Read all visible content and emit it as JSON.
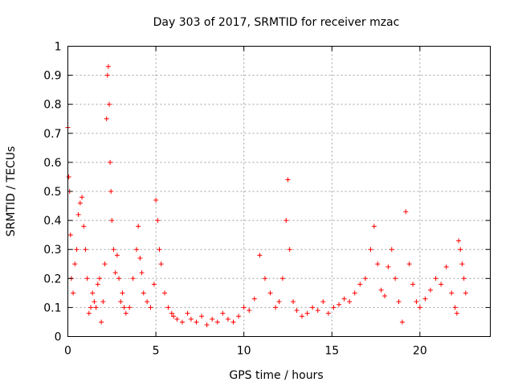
{
  "chart_data": {
    "type": "scatter",
    "title": "Day 303 of 2017, SRMTID for receiver mzac",
    "xlabel": "GPS time / hours",
    "ylabel": "SRMTID / TECUs",
    "xlim": [
      0,
      24
    ],
    "ylim": [
      0,
      1
    ],
    "x_ticks": [
      0,
      5,
      10,
      15,
      20
    ],
    "x_tick_labels": [
      "0",
      "5",
      "10",
      "15",
      "20"
    ],
    "y_ticks": [
      0,
      0.1,
      0.2,
      0.3,
      0.4,
      0.5,
      0.6,
      0.7,
      0.8,
      0.9,
      1
    ],
    "y_tick_labels": [
      "0",
      "0.1",
      "0.2",
      "0.3",
      "0.4",
      "0.5",
      "0.6",
      "0.7",
      "0.8",
      "0.9",
      "1"
    ],
    "grid": true,
    "marker": "+",
    "marker_color": "#ff0000",
    "series": [
      {
        "name": "SRMTID",
        "x": [
          0.0,
          0.05,
          0.1,
          0.15,
          0.2,
          0.3,
          0.4,
          0.5,
          0.6,
          0.7,
          0.8,
          0.9,
          1.0,
          1.1,
          1.2,
          1.3,
          1.4,
          1.5,
          1.6,
          1.7,
          1.8,
          1.9,
          2.0,
          2.1,
          2.2,
          2.25,
          2.3,
          2.35,
          2.4,
          2.45,
          2.5,
          2.6,
          2.7,
          2.8,
          2.9,
          3.0,
          3.1,
          3.2,
          3.3,
          3.5,
          3.7,
          3.9,
          4.0,
          4.1,
          4.2,
          4.3,
          4.5,
          4.7,
          4.9,
          5.0,
          5.1,
          5.2,
          5.3,
          5.5,
          5.7,
          5.9,
          6.0,
          6.2,
          6.5,
          6.8,
          7.0,
          7.3,
          7.6,
          7.9,
          8.2,
          8.5,
          8.8,
          9.1,
          9.4,
          9.7,
          10.0,
          10.3,
          10.6,
          10.9,
          11.2,
          11.5,
          11.8,
          12.0,
          12.2,
          12.4,
          12.5,
          12.6,
          12.8,
          13.0,
          13.3,
          13.6,
          13.9,
          14.2,
          14.5,
          14.8,
          15.1,
          15.4,
          15.7,
          16.0,
          16.3,
          16.6,
          16.9,
          17.2,
          17.4,
          17.6,
          17.8,
          18.0,
          18.2,
          18.4,
          18.6,
          18.8,
          19.0,
          19.2,
          19.4,
          19.6,
          19.8,
          20.0,
          20.3,
          20.6,
          20.9,
          21.2,
          21.5,
          21.8,
          22.0,
          22.1,
          22.2,
          22.3,
          22.4,
          22.5,
          22.6
        ],
        "y": [
          0.72,
          0.55,
          0.5,
          0.35,
          0.2,
          0.15,
          0.25,
          0.3,
          0.42,
          0.46,
          0.48,
          0.38,
          0.3,
          0.2,
          0.08,
          0.1,
          0.15,
          0.12,
          0.1,
          0.18,
          0.2,
          0.05,
          0.12,
          0.25,
          0.75,
          0.9,
          0.93,
          0.8,
          0.6,
          0.5,
          0.4,
          0.3,
          0.22,
          0.28,
          0.2,
          0.12,
          0.15,
          0.1,
          0.08,
          0.1,
          0.2,
          0.3,
          0.38,
          0.27,
          0.22,
          0.15,
          0.12,
          0.1,
          0.18,
          0.47,
          0.4,
          0.3,
          0.25,
          0.15,
          0.1,
          0.08,
          0.07,
          0.06,
          0.05,
          0.08,
          0.06,
          0.05,
          0.07,
          0.04,
          0.06,
          0.05,
          0.08,
          0.06,
          0.05,
          0.07,
          0.1,
          0.09,
          0.13,
          0.28,
          0.2,
          0.15,
          0.1,
          0.12,
          0.2,
          0.4,
          0.54,
          0.3,
          0.12,
          0.09,
          0.07,
          0.08,
          0.1,
          0.09,
          0.12,
          0.08,
          0.1,
          0.11,
          0.13,
          0.12,
          0.15,
          0.18,
          0.2,
          0.3,
          0.38,
          0.25,
          0.16,
          0.14,
          0.24,
          0.3,
          0.2,
          0.12,
          0.05,
          0.43,
          0.25,
          0.18,
          0.12,
          0.1,
          0.13,
          0.16,
          0.2,
          0.18,
          0.24,
          0.15,
          0.1,
          0.08,
          0.33,
          0.3,
          0.25,
          0.2,
          0.15
        ]
      }
    ]
  }
}
